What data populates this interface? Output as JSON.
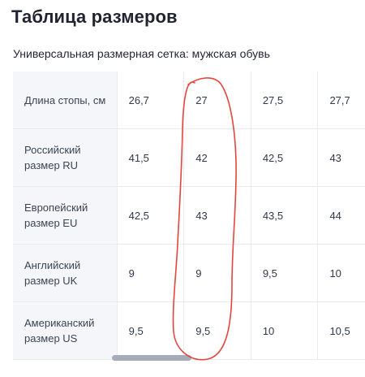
{
  "page": {
    "title": "Таблица размеров",
    "subtitle": "Универсальная размерная сетка: мужская обувь"
  },
  "table": {
    "rows": [
      {
        "label": "Длина стопы, см",
        "values": [
          "26,7",
          "27",
          "27,5",
          "27,7"
        ]
      },
      {
        "label": "Российский размер RU",
        "values": [
          "41,5",
          "42",
          "42,5",
          "43"
        ]
      },
      {
        "label": "Европейский размер EU",
        "values": [
          "42,5",
          "43",
          "43,5",
          "44"
        ]
      },
      {
        "label": "Английский размер UK",
        "values": [
          "9",
          "9",
          "9,5",
          "10"
        ]
      },
      {
        "label": "Американский размер US",
        "values": [
          "9,5",
          "9,5",
          "10",
          "10,5"
        ]
      }
    ]
  },
  "colors": {
    "title": "#1f2430",
    "header_bg": "#f4f6f9",
    "border": "#e8ebf1",
    "scrollbar_thumb": "#a7adb8",
    "annotation": "#e5453c"
  },
  "annotation": {
    "type": "hand-drawn-circle",
    "highlighted_column": 2
  }
}
